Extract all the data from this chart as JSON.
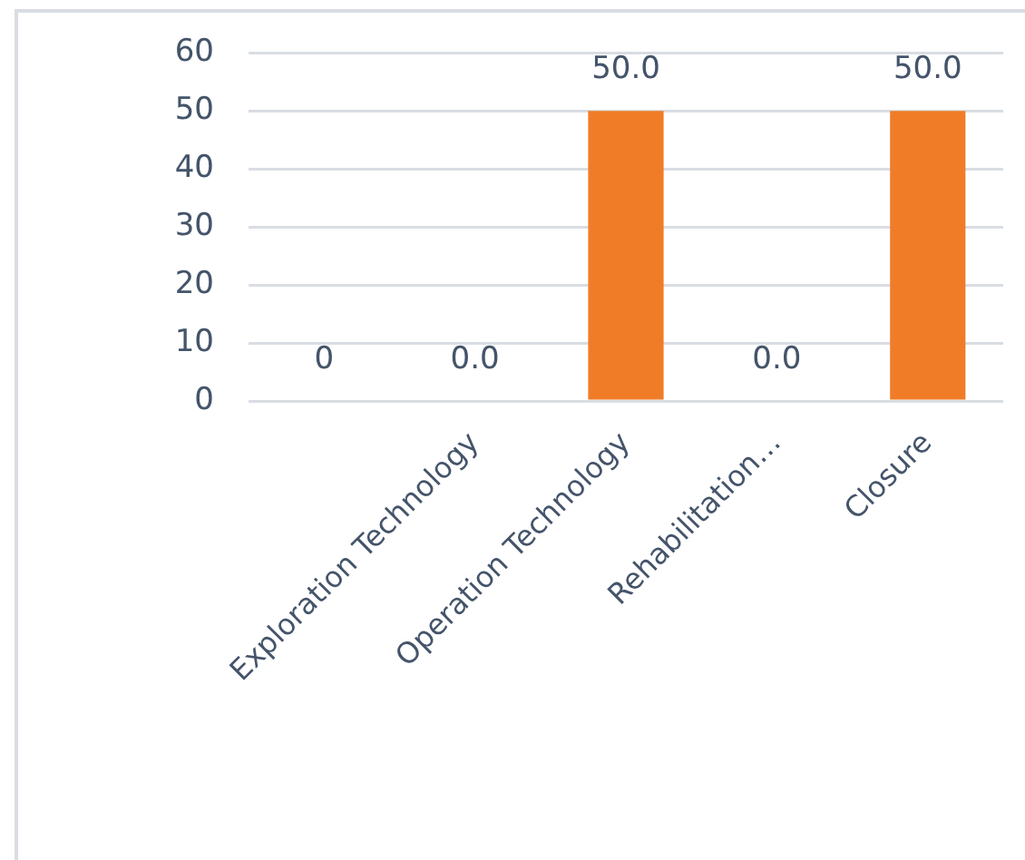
{
  "chart_data": {
    "type": "bar",
    "categories": [
      null,
      "Exploration Technology",
      "Operation Technology",
      "Rehabilitation…",
      "Closure"
    ],
    "values": [
      0,
      0,
      50,
      0,
      50
    ],
    "value_labels": [
      "0",
      "0.0",
      "50.0",
      "0.0",
      "50.0"
    ],
    "color": "#f07c28",
    "ylim": [
      0,
      60
    ],
    "yticks": [
      0,
      10,
      20,
      30,
      40,
      50,
      60
    ],
    "grid": "y"
  }
}
